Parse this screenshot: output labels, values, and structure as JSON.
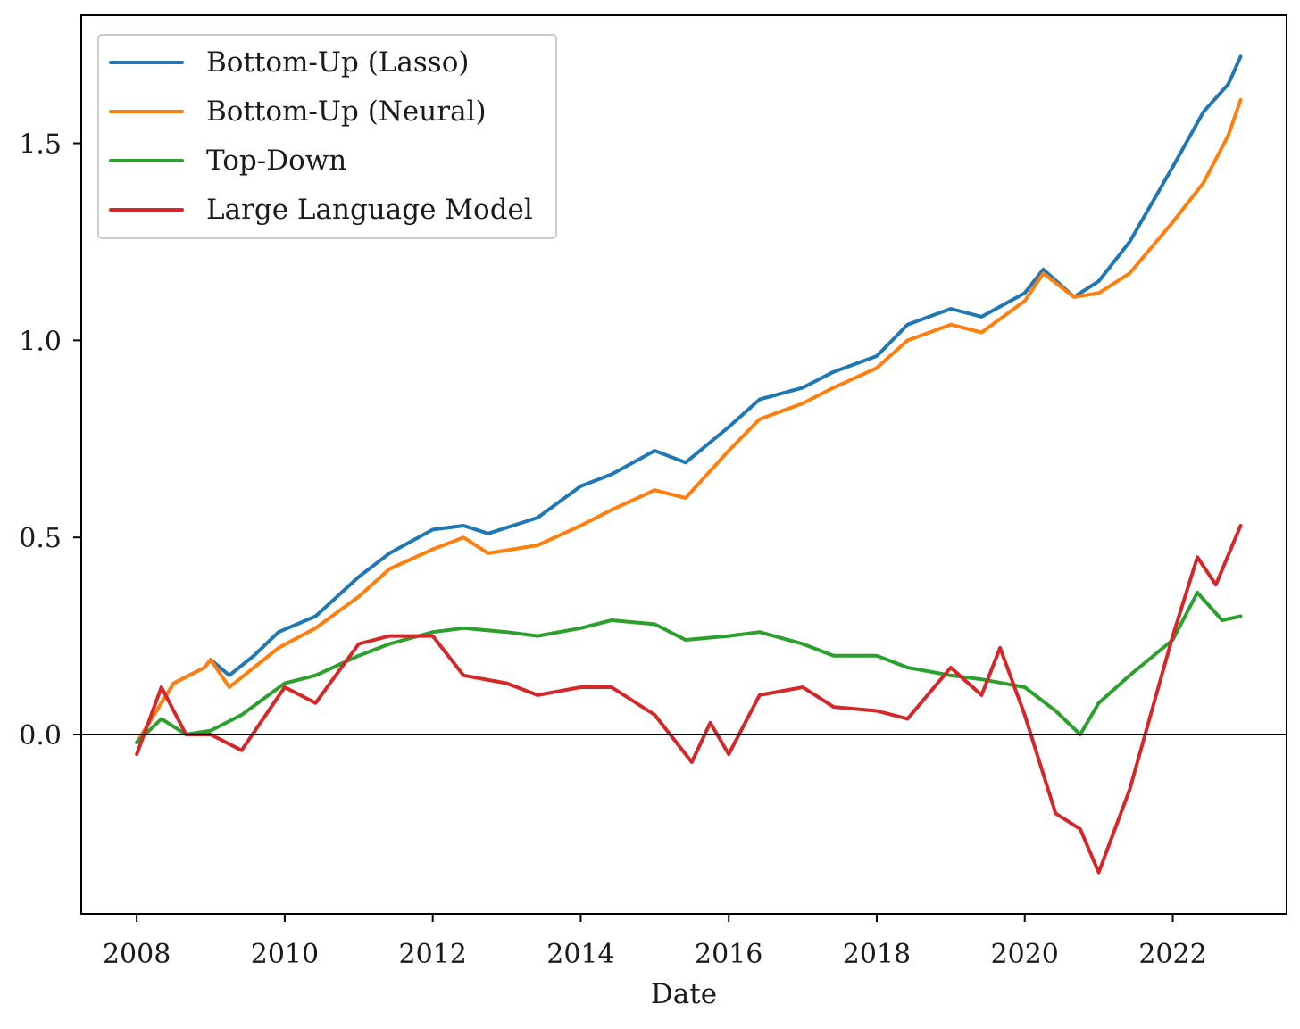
{
  "chart_data": {
    "type": "line",
    "title": "",
    "xlabel": "Date",
    "ylabel": "",
    "x_axis_type": "date",
    "xlim": [
      "2007-04-01",
      "2023-07-15"
    ],
    "ylim": [
      -0.455,
      1.825
    ],
    "xticks": [
      {
        "label": "2008",
        "value": "2008-01-01"
      },
      {
        "label": "2010",
        "value": "2010-01-01"
      },
      {
        "label": "2012",
        "value": "2012-01-01"
      },
      {
        "label": "2014",
        "value": "2014-01-01"
      },
      {
        "label": "2016",
        "value": "2016-01-01"
      },
      {
        "label": "2018",
        "value": "2018-01-01"
      },
      {
        "label": "2020",
        "value": "2020-01-01"
      },
      {
        "label": "2022",
        "value": "2022-01-01"
      }
    ],
    "yticks": [
      {
        "label": "0.0",
        "value": 0
      },
      {
        "label": "0.5",
        "value": 0.5
      },
      {
        "label": "1.0",
        "value": 1.0
      },
      {
        "label": "1.5",
        "value": 1.5
      }
    ],
    "reference_line": {
      "y": 0,
      "color": "#000000"
    },
    "grid": false,
    "legend_position": "top-left",
    "series": [
      {
        "name": "Bottom-Up (Lasso)",
        "color": "#1f77b4",
        "x": [
          "2008-01",
          "2008-07",
          "2008-12",
          "2009-01",
          "2009-04",
          "2009-08",
          "2009-12",
          "2010-06",
          "2011-01",
          "2011-06",
          "2012-01",
          "2012-06",
          "2012-10",
          "2013-06",
          "2014-01",
          "2014-06",
          "2015-01",
          "2015-06",
          "2016-01",
          "2016-06",
          "2017-01",
          "2017-06",
          "2018-01",
          "2018-06",
          "2019-01",
          "2019-06",
          "2020-01",
          "2020-04",
          "2020-09",
          "2021-01",
          "2021-06",
          "2022-01",
          "2022-06",
          "2022-10",
          "2022-12"
        ],
        "y": [
          -0.02,
          0.13,
          0.17,
          0.19,
          0.15,
          0.2,
          0.26,
          0.3,
          0.4,
          0.46,
          0.52,
          0.53,
          0.51,
          0.55,
          0.63,
          0.66,
          0.72,
          0.69,
          0.78,
          0.85,
          0.88,
          0.92,
          0.96,
          1.04,
          1.08,
          1.06,
          1.12,
          1.18,
          1.11,
          1.15,
          1.25,
          1.44,
          1.58,
          1.65,
          1.72
        ]
      },
      {
        "name": "Bottom-Up (Neural)",
        "color": "#ff7f0e",
        "x": [
          "2008-01",
          "2008-07",
          "2008-12",
          "2009-01",
          "2009-04",
          "2009-08",
          "2009-12",
          "2010-06",
          "2011-01",
          "2011-06",
          "2012-01",
          "2012-06",
          "2012-10",
          "2013-06",
          "2014-01",
          "2014-06",
          "2015-01",
          "2015-06",
          "2016-01",
          "2016-06",
          "2017-01",
          "2017-06",
          "2018-01",
          "2018-06",
          "2019-01",
          "2019-06",
          "2020-01",
          "2020-04",
          "2020-09",
          "2021-01",
          "2021-06",
          "2022-01",
          "2022-06",
          "2022-10",
          "2022-12"
        ],
        "y": [
          -0.02,
          0.13,
          0.17,
          0.19,
          0.12,
          0.17,
          0.22,
          0.27,
          0.35,
          0.42,
          0.47,
          0.5,
          0.46,
          0.48,
          0.53,
          0.57,
          0.62,
          0.6,
          0.72,
          0.8,
          0.84,
          0.88,
          0.93,
          1.0,
          1.04,
          1.02,
          1.1,
          1.17,
          1.11,
          1.12,
          1.17,
          1.3,
          1.4,
          1.52,
          1.61
        ]
      },
      {
        "name": "Top-Down",
        "color": "#2ca02c",
        "x": [
          "2008-01",
          "2008-05",
          "2008-09",
          "2009-01",
          "2009-06",
          "2010-01",
          "2010-06",
          "2011-01",
          "2011-06",
          "2012-01",
          "2012-06",
          "2013-01",
          "2013-06",
          "2014-01",
          "2014-06",
          "2015-01",
          "2015-06",
          "2016-01",
          "2016-06",
          "2017-01",
          "2017-06",
          "2018-01",
          "2018-06",
          "2019-01",
          "2019-06",
          "2020-01",
          "2020-06",
          "2020-10",
          "2021-01",
          "2021-06",
          "2022-01",
          "2022-05",
          "2022-09",
          "2022-12"
        ],
        "y": [
          -0.02,
          0.04,
          0.0,
          0.01,
          0.05,
          0.13,
          0.15,
          0.2,
          0.23,
          0.26,
          0.27,
          0.26,
          0.25,
          0.27,
          0.29,
          0.28,
          0.24,
          0.25,
          0.26,
          0.23,
          0.2,
          0.2,
          0.17,
          0.15,
          0.14,
          0.12,
          0.06,
          0.0,
          0.08,
          0.15,
          0.24,
          0.36,
          0.29,
          0.3
        ]
      },
      {
        "name": "Large Language Model",
        "color": "#d62728",
        "x": [
          "2008-01",
          "2008-05",
          "2008-09",
          "2009-01",
          "2009-06",
          "2010-01",
          "2010-06",
          "2011-01",
          "2011-06",
          "2012-01",
          "2012-06",
          "2013-01",
          "2013-06",
          "2014-01",
          "2014-06",
          "2015-01",
          "2015-07",
          "2015-10",
          "2016-01",
          "2016-06",
          "2017-01",
          "2017-06",
          "2018-01",
          "2018-06",
          "2019-01",
          "2019-06",
          "2019-09",
          "2020-01",
          "2020-06",
          "2020-10",
          "2021-01",
          "2021-06",
          "2022-01",
          "2022-05",
          "2022-08",
          "2022-12"
        ],
        "y": [
          -0.05,
          0.12,
          0.0,
          0.0,
          -0.04,
          0.12,
          0.08,
          0.23,
          0.25,
          0.25,
          0.15,
          0.13,
          0.1,
          0.12,
          0.12,
          0.05,
          -0.07,
          0.03,
          -0.05,
          0.1,
          0.12,
          0.07,
          0.06,
          0.04,
          0.17,
          0.1,
          0.22,
          0.05,
          -0.2,
          -0.24,
          -0.35,
          -0.14,
          0.25,
          0.45,
          0.38,
          0.53
        ]
      }
    ]
  }
}
